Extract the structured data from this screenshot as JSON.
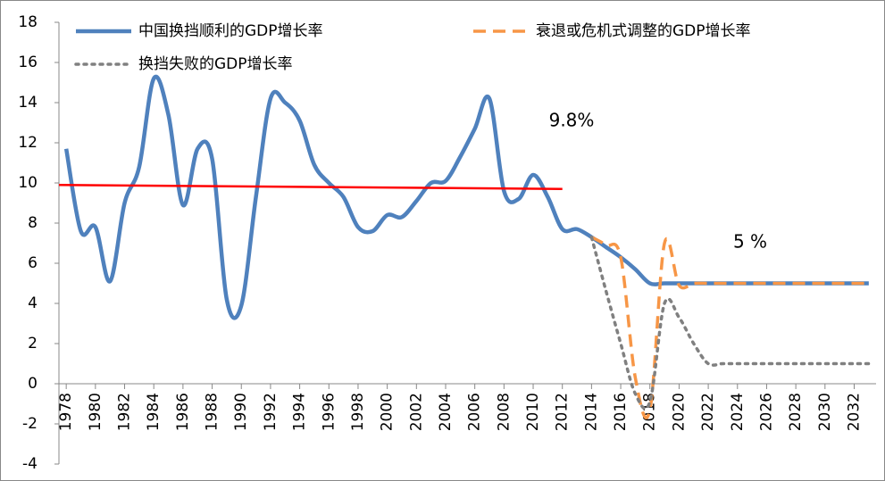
{
  "chart_data": {
    "type": "line",
    "x": [
      1978,
      1979,
      1980,
      1981,
      1982,
      1983,
      1984,
      1985,
      1986,
      1987,
      1988,
      1989,
      1990,
      1991,
      1992,
      1993,
      1994,
      1995,
      1996,
      1997,
      1998,
      1999,
      2000,
      2001,
      2002,
      2003,
      2004,
      2005,
      2006,
      2007,
      2008,
      2009,
      2010,
      2011,
      2012,
      2013,
      2014,
      2015,
      2016,
      2017,
      2018,
      2019,
      2020,
      2021,
      2022,
      2023,
      2024,
      2025,
      2026,
      2027,
      2028,
      2029,
      2030,
      2031,
      2032,
      2033
    ],
    "xlim": [
      1977.5,
      2033.5
    ],
    "xticks": [
      1978,
      1980,
      1982,
      1984,
      1986,
      1988,
      1990,
      1992,
      1994,
      1996,
      1998,
      2000,
      2002,
      2004,
      2006,
      2008,
      2010,
      2012,
      2014,
      2016,
      2018,
      2020,
      2022,
      2024,
      2026,
      2028,
      2030,
      2032
    ],
    "ylim": [
      -4,
      18
    ],
    "yticks": [
      -4,
      -2,
      0,
      2,
      4,
      6,
      8,
      10,
      12,
      14,
      16,
      18
    ],
    "series": [
      {
        "name": "中国换挡顺利的GDP增长率",
        "color": "#4f81bd",
        "style": "solid",
        "values": [
          11.7,
          7.6,
          7.8,
          5.1,
          9.0,
          10.8,
          15.2,
          13.4,
          8.9,
          11.7,
          11.2,
          4.2,
          3.9,
          9.3,
          14.2,
          14.0,
          13.1,
          10.9,
          10.0,
          9.3,
          7.8,
          7.6,
          8.4,
          8.3,
          9.1,
          10.0,
          10.1,
          11.3,
          12.7,
          14.2,
          9.6,
          9.2,
          10.4,
          9.3,
          7.7,
          7.7,
          7.3,
          6.8,
          6.3,
          5.7,
          5.0,
          5.0,
          5.0,
          5.0,
          5.0,
          5.0,
          5.0,
          5.0,
          5.0,
          5.0,
          5.0,
          5.0,
          5.0,
          5.0,
          5.0,
          5.0
        ]
      },
      {
        "name": "衰退或危机式调整的GDP增长率",
        "color": "#f79646",
        "style": "dashed",
        "values": [
          null,
          null,
          null,
          null,
          null,
          null,
          null,
          null,
          null,
          null,
          null,
          null,
          null,
          null,
          null,
          null,
          null,
          null,
          null,
          null,
          null,
          null,
          null,
          null,
          null,
          null,
          null,
          null,
          null,
          null,
          null,
          null,
          null,
          null,
          null,
          null,
          7.3,
          6.9,
          6.3,
          0.3,
          -1.3,
          7.0,
          4.9,
          5.0,
          5.0,
          5.0,
          5.0,
          5.0,
          5.0,
          5.0,
          5.0,
          5.0,
          5.0,
          5.0,
          5.0,
          5.0
        ]
      },
      {
        "name": "换挡失败的GDP增长率",
        "color": "#808080",
        "style": "dotted",
        "values": [
          null,
          null,
          null,
          null,
          null,
          null,
          null,
          null,
          null,
          null,
          null,
          null,
          null,
          null,
          null,
          null,
          null,
          null,
          null,
          null,
          null,
          null,
          null,
          null,
          null,
          null,
          null,
          null,
          null,
          null,
          null,
          null,
          null,
          null,
          null,
          null,
          7.3,
          4.6,
          2.0,
          -0.5,
          -0.9,
          4.0,
          3.3,
          2.0,
          1.0,
          1.0,
          1.0,
          1.0,
          1.0,
          1.0,
          1.0,
          1.0,
          1.0,
          1.0,
          1.0,
          1.0
        ]
      }
    ],
    "trend_line": {
      "color": "#ff0000",
      "x": [
        1977.5,
        2012
      ],
      "values": [
        9.9,
        9.7
      ]
    },
    "annotations": [
      "9.8%",
      "5 %"
    ]
  }
}
